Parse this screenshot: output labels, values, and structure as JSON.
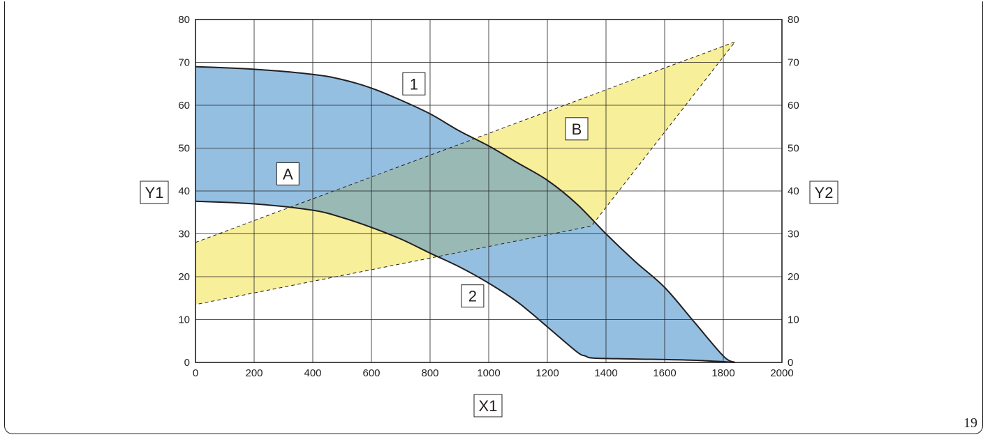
{
  "page_number": "19",
  "colors": {
    "region_A_fill": "#94bfe1",
    "region_B_fill": "#f7ef99",
    "overlap_fill": "#99b9b5",
    "line": "#231f20",
    "grid": "#231f20"
  },
  "chart_data": {
    "type": "area",
    "xlabel": "X1",
    "ylabel_left": "Y1",
    "ylabel_right": "Y2",
    "xlim": [
      0,
      2000
    ],
    "ylim": [
      0,
      80
    ],
    "x_ticks": [
      "0",
      "200",
      "400",
      "600",
      "800",
      "1000",
      "1200",
      "1400",
      "1600",
      "1800",
      "2000"
    ],
    "y_ticks_left": [
      "0",
      "10",
      "20",
      "30",
      "40",
      "50",
      "60",
      "70",
      "80"
    ],
    "y_ticks_right": [
      "0",
      "10",
      "20",
      "30",
      "40",
      "50",
      "60",
      "70",
      "80"
    ],
    "grid": true,
    "series": [
      {
        "name": "1",
        "style": "solid",
        "x": [
          0,
          200,
          400,
          500,
          600,
          700,
          800,
          900,
          1000,
          1100,
          1200,
          1300,
          1400,
          1500,
          1600,
          1700,
          1800,
          1840
        ],
        "y": [
          69,
          68.4,
          67.2,
          66,
          64,
          61.2,
          58,
          54,
          50.5,
          46.5,
          42.5,
          37,
          30,
          23.5,
          17.5,
          9.5,
          1.5,
          0
        ]
      },
      {
        "name": "2",
        "style": "solid",
        "x": [
          0,
          200,
          400,
          500,
          600,
          700,
          800,
          900,
          1000,
          1100,
          1200,
          1300,
          1330,
          1360,
          1500,
          1700,
          1840
        ],
        "y": [
          37.6,
          37,
          35.5,
          33.8,
          31.5,
          28.8,
          25.5,
          22.3,
          18.5,
          14,
          8.3,
          2.5,
          1.5,
          1,
          0.8,
          0.5,
          0
        ]
      }
    ],
    "regions": [
      {
        "label": "A",
        "between": [
          "1",
          "2"
        ],
        "fill": "#94bfe1"
      },
      {
        "label": "B",
        "style": "dashed",
        "fill": "#f7ef99",
        "upper": {
          "x": [
            0,
            1840
          ],
          "y": [
            28,
            74.8
          ]
        },
        "lower": {
          "x": [
            0,
            1350,
            1840
          ],
          "y": [
            13.5,
            31.8,
            74.8
          ]
        }
      }
    ],
    "annotations": [
      {
        "text": "1",
        "x": 745,
        "y": 65,
        "style": "boxed"
      },
      {
        "text": "2",
        "x": 945,
        "y": 15.5,
        "style": "boxed"
      },
      {
        "text": "A",
        "x": 315,
        "y": 44,
        "style": "boxed"
      },
      {
        "text": "B",
        "x": 1300,
        "y": 54.5,
        "style": "boxed"
      }
    ]
  }
}
